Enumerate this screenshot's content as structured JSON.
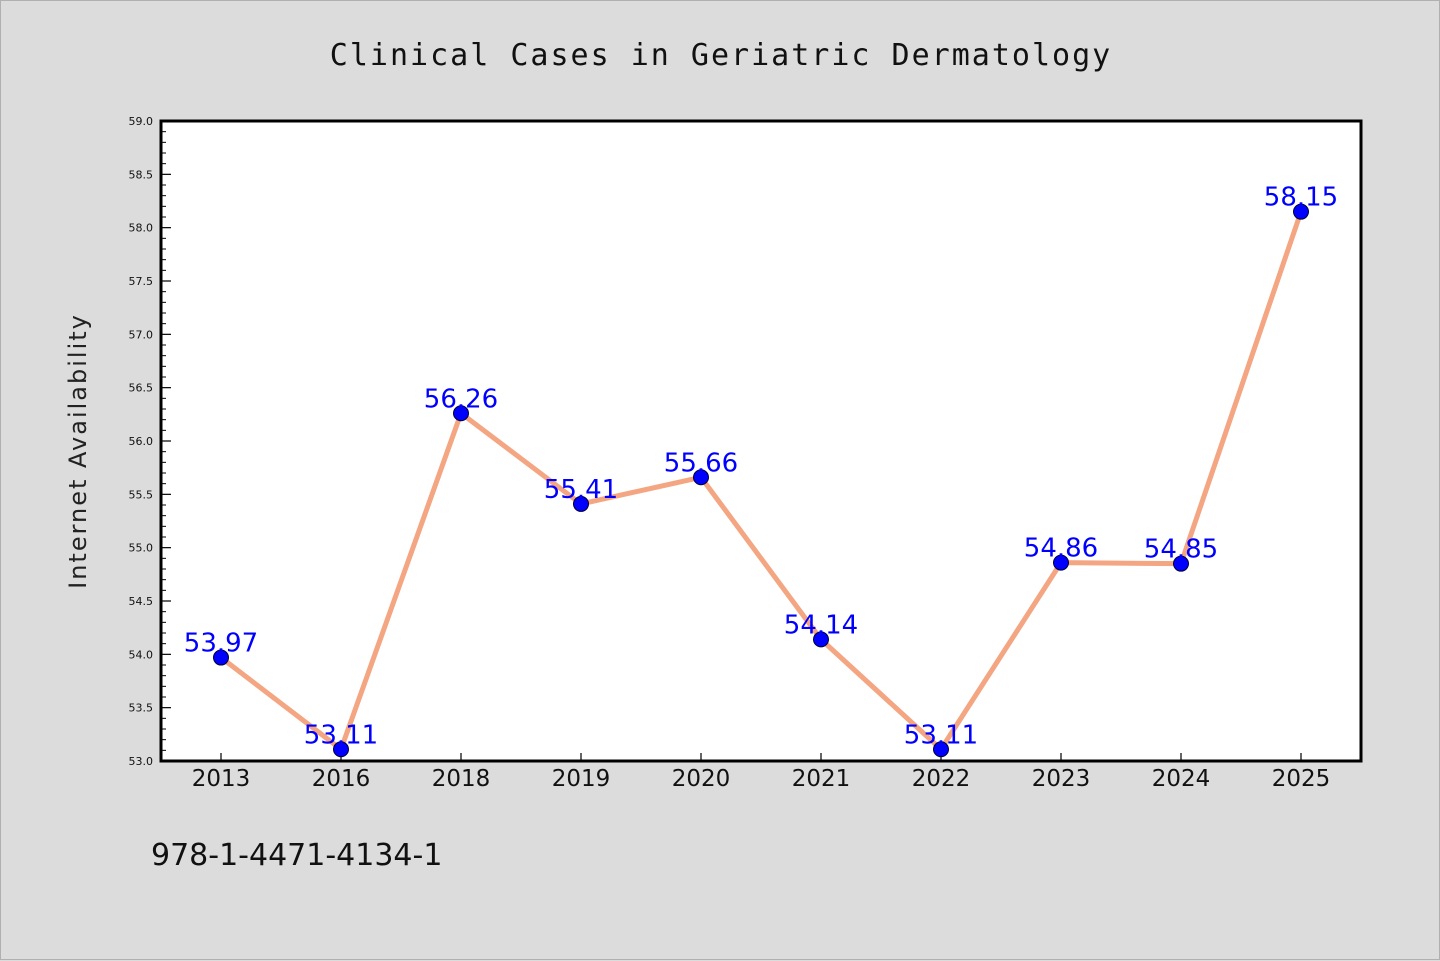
{
  "chart_data": {
    "type": "line",
    "title": "Clinical Cases in Geriatric Dermatology",
    "xlabel": "",
    "ylabel": "Internet Availability",
    "categories": [
      "2013",
      "2016",
      "2018",
      "2019",
      "2020",
      "2021",
      "2022",
      "2023",
      "2024",
      "2025"
    ],
    "series": [
      {
        "values": [
          53.97,
          53.11,
          56.26,
          55.41,
          55.66,
          54.14,
          53.11,
          54.86,
          54.85,
          58.15
        ],
        "labels": [
          "53.97",
          "53.11",
          "56.26",
          "55.41",
          "55.66",
          "54.14",
          "53.11",
          "54.86",
          "54.85",
          "58.15"
        ],
        "line_color": "#f4a582",
        "marker_color": "#0000ff",
        "label_color": "#0000ff"
      }
    ],
    "ylim": [
      53.0,
      59.0
    ],
    "yticks": [
      "53.0",
      "53.5",
      "54.0",
      "54.5",
      "55.0",
      "55.5",
      "56.0",
      "56.5",
      "57.0",
      "57.5",
      "58.0",
      "58.5",
      "59.0"
    ],
    "grid": false,
    "legend": "none"
  },
  "footnote": "978-1-4471-4134-1",
  "colors": {
    "background": "#dcdcdc",
    "plot_background": "#ffffff"
  }
}
